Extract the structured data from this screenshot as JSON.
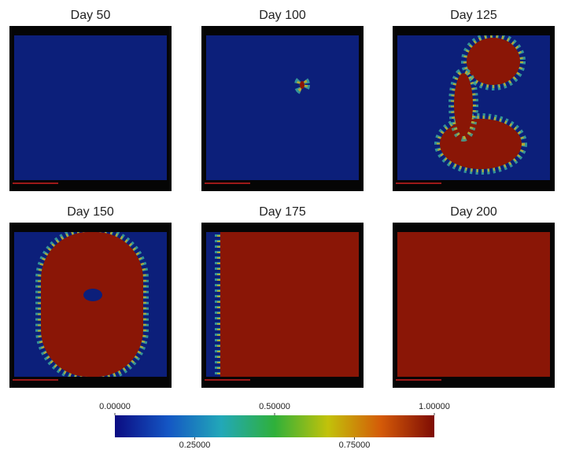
{
  "panels": [
    {
      "title": "Day 50"
    },
    {
      "title": "Day 100"
    },
    {
      "title": "Day 125"
    },
    {
      "title": "Day 150"
    },
    {
      "title": "Day 175"
    },
    {
      "title": "Day 200"
    }
  ],
  "colorbar": {
    "ticks": [
      {
        "value": 0,
        "label": "0.00000"
      },
      {
        "value": 0.25,
        "label": "0.25000"
      },
      {
        "value": 0.5,
        "label": "0.50000"
      },
      {
        "value": 0.75,
        "label": "0.75000"
      },
      {
        "value": 1,
        "label": "1.00000"
      }
    ],
    "range": [
      0,
      1
    ],
    "colors": [
      "#0b0c82",
      "#1456c4",
      "#22a8b8",
      "#2fb03a",
      "#c2c20a",
      "#d45a08",
      "#7e0c04"
    ]
  }
}
